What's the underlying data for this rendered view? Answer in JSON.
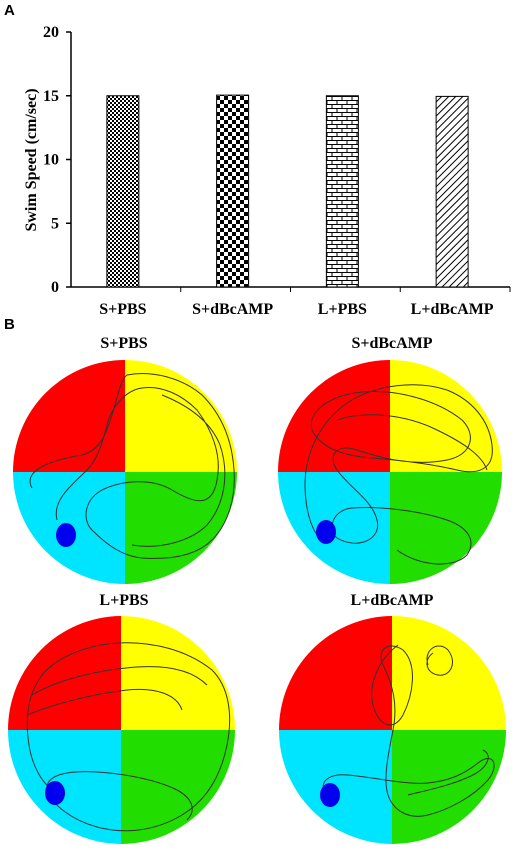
{
  "panels": {
    "a_label": "A",
    "b_label": "B"
  },
  "chart_data": {
    "type": "bar",
    "categories": [
      "S+PBS",
      "S+dBcAMP",
      "L+PBS",
      "L+dBcAMP"
    ],
    "values": [
      15.0,
      15.05,
      15.0,
      14.95
    ],
    "ylabel": "Swim Speed  (cm/sec)",
    "xlabel": "",
    "ylim": [
      0,
      20
    ],
    "yticks": [
      0,
      5,
      10,
      15,
      20
    ],
    "bar_patterns": [
      "small-checker",
      "large-checker",
      "brick",
      "diagonal-hatch"
    ],
    "grid": false
  },
  "mazes": [
    {
      "title": "S+PBS"
    },
    {
      "title": "S+dBcAMP"
    },
    {
      "title": "L+PBS"
    },
    {
      "title": "L+dBcAMP"
    }
  ],
  "quadrant_colors": {
    "nw": "#ff0000",
    "ne": "#ffff00",
    "sw": "#00e5ff",
    "se": "#22dd00"
  },
  "platform_color": "#0000ee",
  "path_color": "#333333"
}
